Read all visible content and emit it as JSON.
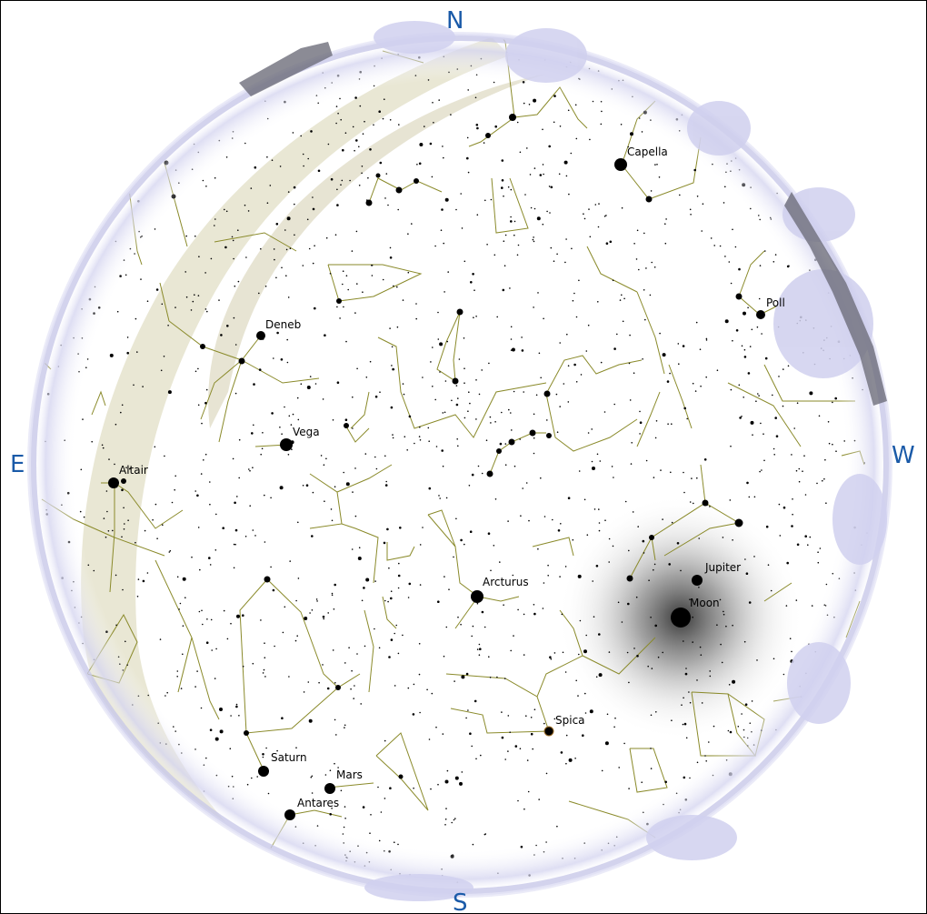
{
  "cardinals": {
    "north": "N",
    "south": "S",
    "east": "E",
    "west": "W"
  },
  "labels": {
    "capella": "Capella",
    "pollux": "Poll",
    "deneb": "Deneb",
    "vega": "Vega",
    "altair": "Altair",
    "jupiter": "Jupiter",
    "moon": "Moon",
    "arcturus": "Arcturus",
    "spica": "Spica",
    "saturn": "Saturn",
    "mars": "Mars",
    "antares": "Antares"
  },
  "colors": {
    "cardinal": "#1a5aa8",
    "constellation_line": "#8a8a2a",
    "milky_way": "#d8d4b8",
    "horizon_ring": "#c8c8e8"
  }
}
